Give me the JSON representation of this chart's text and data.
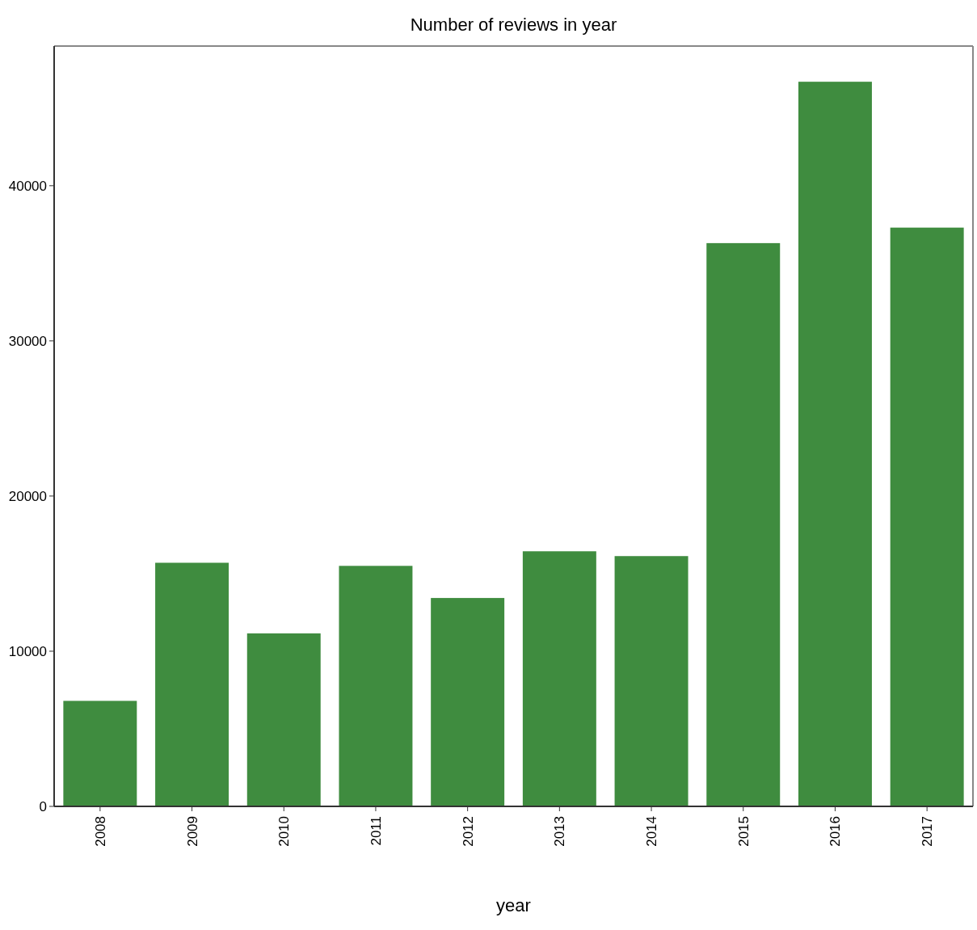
{
  "chart_data": {
    "type": "bar",
    "title": "Number of reviews in year",
    "xlabel": "year",
    "categories": [
      "2008",
      "2009",
      "2010",
      "2011",
      "2012",
      "2013",
      "2014",
      "2015",
      "2016",
      "2017"
    ],
    "values": [
      6800,
      15700,
      11150,
      15500,
      13430,
      16440,
      16130,
      36300,
      46700,
      37300
    ],
    "color": "#3f8c3f",
    "ylim": [
      0,
      49000
    ],
    "yticks": [
      0,
      10000,
      20000,
      30000,
      40000
    ],
    "grid": false
  }
}
